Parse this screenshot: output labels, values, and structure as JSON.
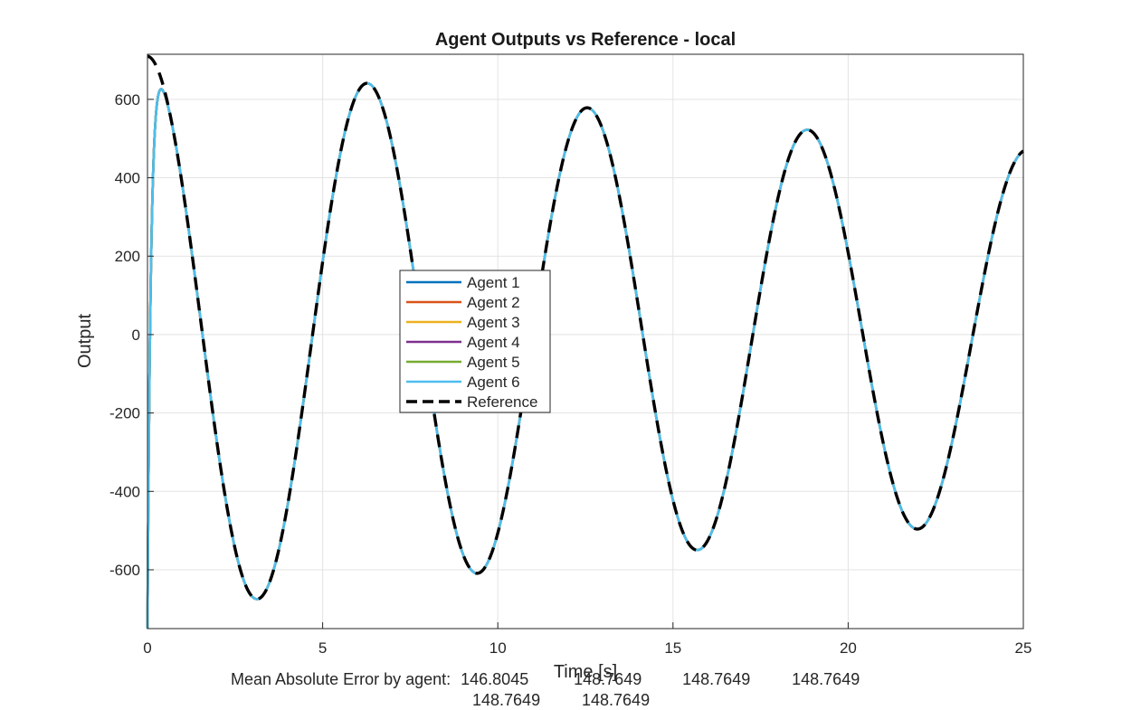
{
  "chart_data": {
    "type": "line",
    "title": "Agent Outputs vs Reference - local",
    "xlabel": "Time [s]",
    "ylabel": "Output",
    "xlim": [
      0,
      25
    ],
    "ylim": [
      -750,
      715
    ],
    "xticks": [
      0,
      5,
      10,
      15,
      20,
      25
    ],
    "yticks": [
      -600,
      -400,
      -200,
      0,
      200,
      400,
      600
    ],
    "grid": true,
    "legend_position": "center",
    "reference": {
      "name": "Reference",
      "style": "dashed",
      "color": "#000000",
      "model": "710*exp(-0.0163*t)*cos(1.0*t)"
    },
    "series": [
      {
        "name": "Agent 1",
        "color": "#0072BD"
      },
      {
        "name": "Agent 2",
        "color": "#D95319"
      },
      {
        "name": "Agent 3",
        "color": "#EDB120"
      },
      {
        "name": "Agent 4",
        "color": "#7E2F8E"
      },
      {
        "name": "Agent 5",
        "color": "#77AC30"
      },
      {
        "name": "Agent 6",
        "color": "#4DBEEE"
      }
    ],
    "key_points": [
      {
        "t": 0,
        "reference": 710,
        "agents": -750
      },
      {
        "t": 0.4,
        "reference": 660,
        "agents": 712
      },
      {
        "t": 3.1,
        "reference": -680,
        "agents": -680
      },
      {
        "t": 6.3,
        "reference": 650,
        "agents": 650
      },
      {
        "t": 9.4,
        "reference": -615,
        "agents": -615
      },
      {
        "t": 12.6,
        "reference": 590,
        "agents": 590
      },
      {
        "t": 15.7,
        "reference": -555,
        "agents": -555
      },
      {
        "t": 18.8,
        "reference": 530,
        "agents": 530
      },
      {
        "t": 22.0,
        "reference": -505,
        "agents": -505
      },
      {
        "t": 25.0,
        "reference": 475,
        "agents": 475
      }
    ]
  },
  "footer": {
    "label": "Mean Absolute Error by agent:",
    "values": [
      "146.8045",
      "148.7649",
      "148.7649",
      "148.7649",
      "148.7649",
      "148.7649"
    ]
  }
}
